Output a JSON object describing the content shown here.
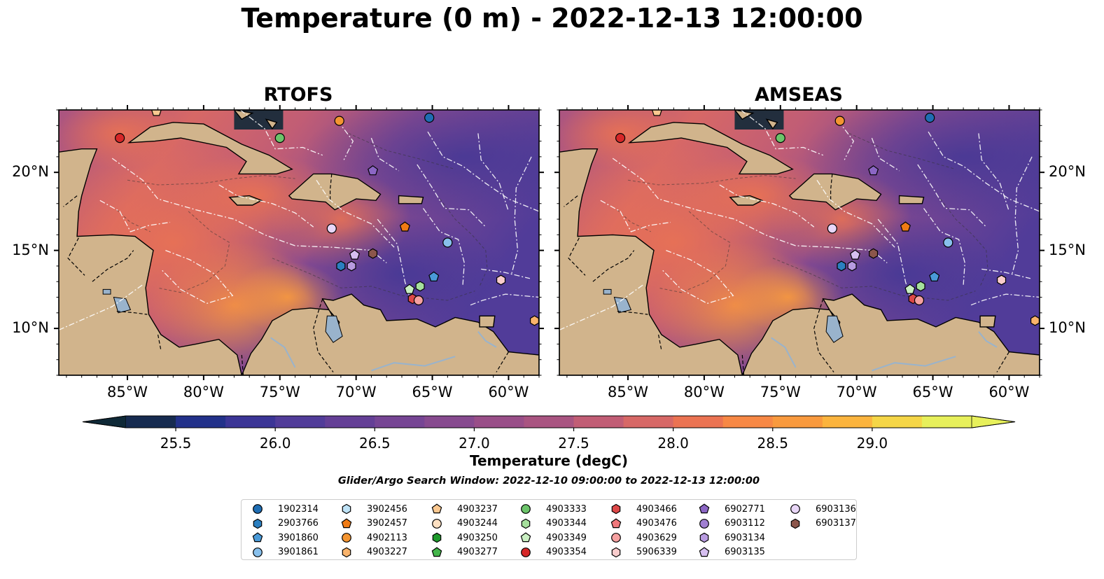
{
  "title": "Temperature (0 m) - 2022-12-13 12:00:00",
  "panels": [
    {
      "title": "RTOFS",
      "model": "RTOFS"
    },
    {
      "title": "AMSEAS",
      "model": "AMSEAS"
    }
  ],
  "lon_ticks": [
    "85°W",
    "80°W",
    "75°W",
    "70°W",
    "65°W",
    "60°W"
  ],
  "lat_ticks": [
    "20°N",
    "15°N",
    "10°N"
  ],
  "map_extent": {
    "lon": [
      -89.5,
      -58.0
    ],
    "lat": [
      7.0,
      24.0
    ]
  },
  "colorbar": {
    "label": "Temperature (degC)",
    "min": 25.25,
    "max": 29.5,
    "step": 0.25,
    "extend": "both",
    "ticks": [
      "25.5",
      "26.0",
      "26.5",
      "27.0",
      "27.5",
      "28.0",
      "28.5",
      "29.0"
    ],
    "colors": [
      "#0f2937",
      "#162b50",
      "#22318a",
      "#3b3596",
      "#513c99",
      "#643f96",
      "#764594",
      "#874a8f",
      "#994e88",
      "#a95481",
      "#c15d75",
      "#d76866",
      "#eb7352",
      "#f78845",
      "#f99a3e",
      "#fbb43e",
      "#f5d647",
      "#e7f05b"
    ]
  },
  "colors": {
    "land": "#d1b48c",
    "lake": "#99b3cc",
    "ocean_mask": "#92b1da",
    "eez_line": "#ffffff"
  },
  "search_window": "Glider/Argo Search Window: 2022-12-10 09:00:00 to 2022-12-13 12:00:00",
  "legend": [
    {
      "id": "1902314",
      "shape": "circle",
      "color": "#1f6db3"
    },
    {
      "id": "2903766",
      "shape": "hexagon",
      "color": "#2b7fc0"
    },
    {
      "id": "3901860",
      "shape": "pentagon",
      "color": "#4a9ad8"
    },
    {
      "id": "3901861",
      "shape": "circle",
      "color": "#88c0ec"
    },
    {
      "id": "3902456",
      "shape": "hexagon",
      "color": "#bfe3f7"
    },
    {
      "id": "3902457",
      "shape": "pentagon",
      "color": "#f07b14"
    },
    {
      "id": "4902113",
      "shape": "circle",
      "color": "#f49531"
    },
    {
      "id": "4903227",
      "shape": "hexagon",
      "color": "#f9b36b"
    },
    {
      "id": "4903237",
      "shape": "pentagon",
      "color": "#fbc890"
    },
    {
      "id": "4903244",
      "shape": "circle",
      "color": "#fde0c2"
    },
    {
      "id": "4903250",
      "shape": "hexagon",
      "color": "#1e9a2c"
    },
    {
      "id": "4903277",
      "shape": "pentagon",
      "color": "#43b54a"
    },
    {
      "id": "4903333",
      "shape": "circle",
      "color": "#6cc46a"
    },
    {
      "id": "4903344",
      "shape": "hexagon",
      "color": "#a6e09d"
    },
    {
      "id": "4903349",
      "shape": "pentagon",
      "color": "#c9efc2"
    },
    {
      "id": "4903354",
      "shape": "circle",
      "color": "#d62728"
    },
    {
      "id": "4903466",
      "shape": "hexagon",
      "color": "#dd4848"
    },
    {
      "id": "4903476",
      "shape": "pentagon",
      "color": "#f0787c"
    },
    {
      "id": "4903629",
      "shape": "circle",
      "color": "#f5a0a0"
    },
    {
      "id": "5906339",
      "shape": "hexagon",
      "color": "#f9cccc"
    },
    {
      "id": "6902771",
      "shape": "pentagon",
      "color": "#8b66c4"
    },
    {
      "id": "6903112",
      "shape": "circle",
      "color": "#a07fd1"
    },
    {
      "id": "6903134",
      "shape": "hexagon",
      "color": "#b89be0"
    },
    {
      "id": "6903135",
      "shape": "pentagon",
      "color": "#d6bff0"
    },
    {
      "id": "6903136",
      "shape": "circle",
      "color": "#e8d6f7"
    },
    {
      "id": "6903137",
      "shape": "hexagon",
      "color": "#8c564b"
    }
  ],
  "observations": [
    {
      "id": "4903354",
      "lon": -85.5,
      "lat": 22.2
    },
    {
      "id": "4903237",
      "lon": -83.1,
      "lat": 23.9
    },
    {
      "id": "4903333",
      "lon": -75.0,
      "lat": 22.2
    },
    {
      "id": "4902113",
      "lon": -71.1,
      "lat": 23.3
    },
    {
      "id": "1902314",
      "lon": -65.2,
      "lat": 23.5
    },
    {
      "id": "6902771",
      "lon": -68.9,
      "lat": 20.1
    },
    {
      "id": "6903136",
      "lon": -71.6,
      "lat": 16.4
    },
    {
      "id": "3902457",
      "lon": -66.8,
      "lat": 16.5
    },
    {
      "id": "3901861",
      "lon": -64.0,
      "lat": 15.5
    },
    {
      "id": "6903135",
      "lon": -70.1,
      "lat": 14.7
    },
    {
      "id": "6903137",
      "lon": -68.9,
      "lat": 14.8
    },
    {
      "id": "2903766",
      "lon": -71.0,
      "lat": 14.0
    },
    {
      "id": "6903134",
      "lon": -70.3,
      "lat": 14.0
    },
    {
      "id": "3901860",
      "lon": -64.9,
      "lat": 13.3
    },
    {
      "id": "4903344",
      "lon": -65.8,
      "lat": 12.7
    },
    {
      "id": "4903349",
      "lon": -66.5,
      "lat": 12.5
    },
    {
      "id": "4903466",
      "lon": -66.3,
      "lat": 11.9
    },
    {
      "id": "4903629",
      "lon": -65.9,
      "lat": 11.8
    },
    {
      "id": "5906339",
      "lon": -60.5,
      "lat": 13.1
    },
    {
      "id": "4903227",
      "lon": -58.3,
      "lat": 10.5
    }
  ]
}
